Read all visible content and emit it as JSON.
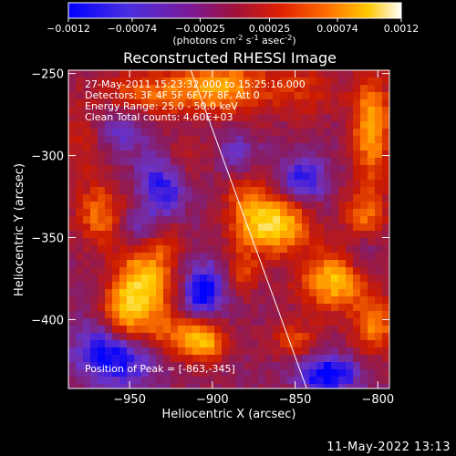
{
  "colorbar": {
    "ticks": [
      "-0.0012",
      "-0.00074",
      "-0.00025",
      "0.00025",
      "0.00074",
      "0.0012"
    ],
    "unit_main": "(photons cm",
    "unit_exp1": "-2",
    "unit_mid": " s",
    "unit_exp2": "-1",
    "unit_end": " asec",
    "unit_exp3": "-2",
    "unit_close": ")"
  },
  "chart_data": {
    "type": "heatmap",
    "title": "Reconstructed RHESSI Image",
    "xlabel": "Heliocentric X (arcsec)",
    "ylabel": "Heliocentric Y (arcsec)",
    "xlim": [
      -987,
      -793
    ],
    "ylim": [
      -442,
      -248
    ],
    "xticks": [
      -950,
      -900,
      -850,
      -800
    ],
    "yticks": [
      -250,
      -300,
      -350,
      -400
    ],
    "colormap": [
      "#0000ff",
      "#6a33c8",
      "#8b1a5a",
      "#cc1a00",
      "#ff7a00",
      "#ffd000",
      "#ffffff"
    ],
    "clim": [
      -0.0012,
      0.0012
    ],
    "annotations": [
      "27-May-2011 15:23:32.000 to 15:25:16.000",
      "Detectors: 3F 4F 5F 6F 7F 8F, Att 0",
      "Energy Range: 25.0 - 50.0 keV",
      "Clean    Total counts: 4.60E+03"
    ],
    "peak_label": "Position of Peak = [-863,-345]",
    "peak": [
      -863,
      -345
    ],
    "limb_line": [
      [
        -913,
        -248
      ],
      [
        -843,
        -442
      ]
    ],
    "sources": [
      {
        "x": -862,
        "y": -342,
        "sx": 14,
        "sy": 12,
        "v": 0.00125
      },
      {
        "x": -880,
        "y": -318,
        "sx": 9,
        "sy": 24,
        "v": 0.0006
      },
      {
        "x": -940,
        "y": -378,
        "sx": 12,
        "sy": 20,
        "v": 0.0011
      },
      {
        "x": -954,
        "y": -398,
        "sx": 9,
        "sy": 14,
        "v": 0.0009
      },
      {
        "x": -920,
        "y": -410,
        "sx": 16,
        "sy": 9,
        "v": 0.0006
      },
      {
        "x": -905,
        "y": -414,
        "sx": 9,
        "sy": 9,
        "v": 0.0008
      },
      {
        "x": -825,
        "y": -376,
        "sx": 15,
        "sy": 13,
        "v": 0.0011
      },
      {
        "x": -808,
        "y": -338,
        "sx": 9,
        "sy": 14,
        "v": 0.0007
      },
      {
        "x": -804,
        "y": -282,
        "sx": 8,
        "sy": 22,
        "v": 0.001
      },
      {
        "x": -802,
        "y": -405,
        "sx": 9,
        "sy": 11,
        "v": 0.0008
      },
      {
        "x": -895,
        "y": -258,
        "sx": 20,
        "sy": 11,
        "v": 0.0009
      },
      {
        "x": -940,
        "y": -262,
        "sx": 22,
        "sy": 10,
        "v": 0.0006
      },
      {
        "x": -968,
        "y": -336,
        "sx": 10,
        "sy": 14,
        "v": 0.0007
      },
      {
        "x": -975,
        "y": -290,
        "sx": 10,
        "sy": 14,
        "v": 0.0005
      },
      {
        "x": -918,
        "y": -300,
        "sx": 10,
        "sy": 10,
        "v": 0.0004
      },
      {
        "x": -830,
        "y": -425,
        "sx": 13,
        "sy": 8,
        "v": 0.0003
      },
      {
        "x": -925,
        "y": -350,
        "sx": 6,
        "sy": 8,
        "v": 0.0003
      },
      {
        "x": -882,
        "y": -372,
        "sx": 7,
        "sy": 9,
        "v": 0.0005
      },
      {
        "x": -850,
        "y": -412,
        "sx": 10,
        "sy": 8,
        "v": 0.0005
      },
      {
        "x": -845,
        "y": -260,
        "sx": 16,
        "sy": 12,
        "v": 0.0004
      }
    ],
    "holes": [
      {
        "x": -958,
        "y": -420,
        "sx": 16,
        "sy": 14,
        "v": -0.001
      },
      {
        "x": -905,
        "y": -383,
        "sx": 9,
        "sy": 12,
        "v": -0.0009
      },
      {
        "x": -830,
        "y": -432,
        "sx": 13,
        "sy": 9,
        "v": -0.0011
      },
      {
        "x": -882,
        "y": -300,
        "sx": 9,
        "sy": 11,
        "v": -0.0008
      },
      {
        "x": -845,
        "y": -315,
        "sx": 10,
        "sy": 10,
        "v": -0.0007
      },
      {
        "x": -930,
        "y": -318,
        "sx": 10,
        "sy": 16,
        "v": -0.0007
      },
      {
        "x": -960,
        "y": -285,
        "sx": 12,
        "sy": 12,
        "v": -0.0005
      },
      {
        "x": -810,
        "y": -360,
        "sx": 8,
        "sy": 10,
        "v": -0.0006
      },
      {
        "x": -945,
        "y": -345,
        "sx": 8,
        "sy": 8,
        "v": -0.0005
      }
    ]
  },
  "footer": {
    "timestamp": "11-May-2022 13:13"
  }
}
